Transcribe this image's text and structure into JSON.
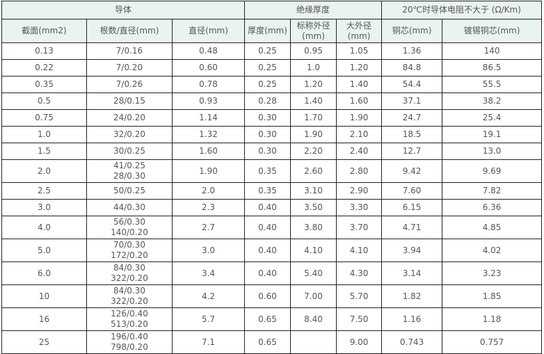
{
  "header": {
    "group_conductor": "导体",
    "group_insulation": "绝缘厚度",
    "group_resistance": "20℃时导体电阻不大于 (Ω/Km)",
    "columns": [
      "截面(mm2)",
      "根数/直径(mm)",
      "直径(mm)",
      "厚度(mm)",
      "标称外径",
      "(mm)",
      "大外径",
      "(mm)",
      "铜芯(mm)",
      "镀锡铜芯(mm)"
    ]
  },
  "rows": [
    {
      "section": "0.13",
      "strands": [
        "7/0.16"
      ],
      "diameter": "0.48",
      "thickness": "0.25",
      "nominal_od": "0.95",
      "max_od": "1.05",
      "copper": "1.36",
      "tinned": "140"
    },
    {
      "section": "0.22",
      "strands": [
        "7/0.20"
      ],
      "diameter": "0.60",
      "thickness": "0.25",
      "nominal_od": "1.0",
      "max_od": "1.20",
      "copper": "84.8",
      "tinned": "86.5"
    },
    {
      "section": "0.35",
      "strands": [
        "7/0.26"
      ],
      "diameter": "0.78",
      "thickness": "0.25",
      "nominal_od": "1.20",
      "max_od": "1.40",
      "copper": "54.4",
      "tinned": "55.5"
    },
    {
      "section": "0.5",
      "strands": [
        "28/0.15"
      ],
      "diameter": "0.93",
      "thickness": "0.28",
      "nominal_od": "1.40",
      "max_od": "1.60",
      "copper": "37.1",
      "tinned": "38.2"
    },
    {
      "section": "0.75",
      "strands": [
        "24/0.20"
      ],
      "diameter": "1.14",
      "thickness": "0.30",
      "nominal_od": "1.70",
      "max_od": "1.90",
      "copper": "24.7",
      "tinned": "25.4"
    },
    {
      "section": "1.0",
      "strands": [
        "32/0.20"
      ],
      "diameter": "1.32",
      "thickness": "0.30",
      "nominal_od": "1.90",
      "max_od": "2.10",
      "copper": "18.5",
      "tinned": "19.1"
    },
    {
      "section": "1.5",
      "strands": [
        "30/0.25"
      ],
      "diameter": "1.60",
      "thickness": "0.30",
      "nominal_od": "2.20",
      "max_od": "2.40",
      "copper": "12.7",
      "tinned": "13.0"
    },
    {
      "section": "2.0",
      "strands": [
        "41/0.25",
        "28/0.30"
      ],
      "diameter": "1.90",
      "thickness": "0.35",
      "nominal_od": "2.60",
      "max_od": "2.80",
      "copper": "9.42",
      "tinned": "9.69"
    },
    {
      "section": "2.5",
      "strands": [
        "50/0.25"
      ],
      "diameter": "2.0",
      "thickness": "0.35",
      "nominal_od": "3.10",
      "max_od": "2.90",
      "copper": "7.60",
      "tinned": "7.82"
    },
    {
      "section": "3.0",
      "strands": [
        "44/0.30"
      ],
      "diameter": "2.3",
      "thickness": "0.40",
      "nominal_od": "3.50",
      "max_od": "3.30",
      "copper": "6.15",
      "tinned": "6.36"
    },
    {
      "section": "4.0",
      "strands": [
        "56/0.30",
        "140/0.20"
      ],
      "diameter": "2.7",
      "thickness": "0.40",
      "nominal_od": "3.80",
      "max_od": "3.70",
      "copper": "4.71",
      "tinned": "4.85"
    },
    {
      "section": "5.0",
      "strands": [
        "70/0.30",
        "172/0.20"
      ],
      "diameter": "3.0",
      "thickness": "0.40",
      "nominal_od": "4.10",
      "max_od": "4.10",
      "copper": "3.94",
      "tinned": "4.02"
    },
    {
      "section": "6.0",
      "strands": [
        "84/0.30",
        "322/0.20"
      ],
      "diameter": "3.4",
      "thickness": "0.40",
      "nominal_od": "5.40",
      "max_od": "4.30",
      "copper": "3.14",
      "tinned": "3.23"
    },
    {
      "section": "10",
      "strands": [
        "84/0.30",
        "322/0.20"
      ],
      "diameter": "4.2",
      "thickness": "0.60",
      "nominal_od": "7.00",
      "max_od": "5.70",
      "copper": "1.82",
      "tinned": "1.85"
    },
    {
      "section": "16",
      "strands": [
        "126/0.40",
        "513/0.20"
      ],
      "diameter": "5.7",
      "thickness": "0.65",
      "nominal_od": "8.40",
      "max_od": "7.50",
      "copper": "1.16",
      "tinned": "1.18"
    },
    {
      "section": "25",
      "strands": [
        "196/0.40",
        "798/0.20"
      ],
      "diameter": "7.1",
      "thickness": "0.65",
      "nominal_od": "",
      "max_od": "9.00",
      "copper": "0.743",
      "tinned": "0.757"
    }
  ]
}
